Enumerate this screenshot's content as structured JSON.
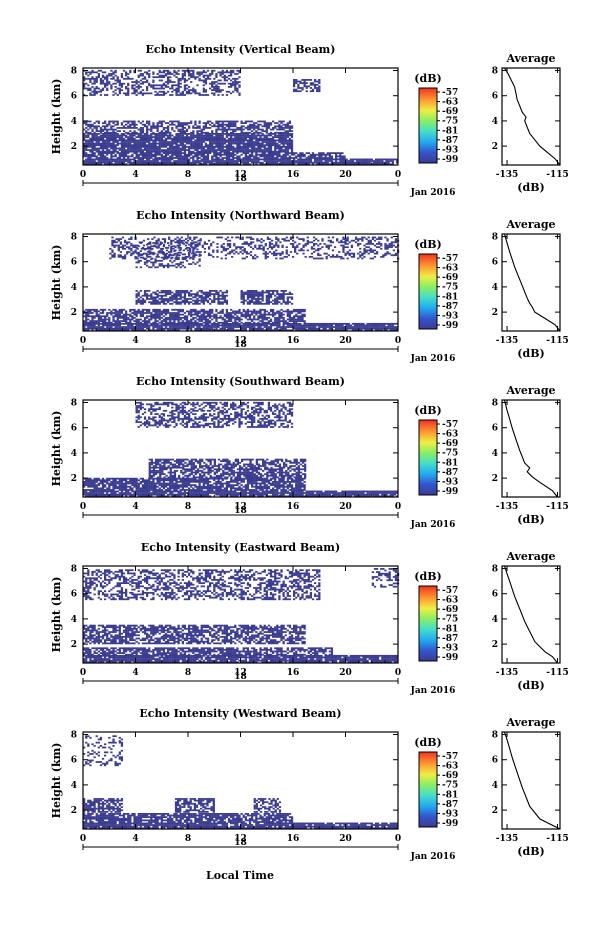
{
  "figure": {
    "xlabel": "Local Time",
    "colorbar_label": "(dB)",
    "avg_title": "Average",
    "avg_xlabel": "(dB)"
  },
  "chart_data": [
    {
      "type": "heatmap",
      "title": "Echo Intensity (Vertical Beam)",
      "ylabel": "Height (km)",
      "xticks": [
        "0",
        "4",
        "8",
        "12",
        "16",
        "20",
        "0"
      ],
      "yticks": [
        "2",
        "4",
        "6",
        "8"
      ],
      "date_label": "Jan 2016",
      "day_label": "18",
      "xlim": [
        0,
        24
      ],
      "ylim": [
        0.5,
        8.2
      ],
      "colorbar": {
        "ticks": [
          "-57",
          "-63",
          "-69",
          "-75",
          "-81",
          "-87",
          "-93",
          "-99"
        ],
        "range": [
          -99,
          -57
        ]
      },
      "layers": [
        {
          "t0": 0,
          "t1": 24,
          "h0": 0.5,
          "h1": 1.0,
          "d": 0.9
        },
        {
          "t0": 0,
          "t1": 20,
          "h0": 1.0,
          "h1": 1.5,
          "d": 0.75
        },
        {
          "t0": 0,
          "t1": 16,
          "h0": 1.5,
          "h1": 3.0,
          "d": 0.88
        },
        {
          "t0": 0,
          "t1": 16,
          "h0": 3.0,
          "h1": 4.0,
          "d": 0.6
        },
        {
          "t0": 0,
          "t1": 12,
          "h0": 6.0,
          "h1": 8.0,
          "d": 0.45
        },
        {
          "t0": 16,
          "t1": 18,
          "h0": 6.3,
          "h1": 7.3,
          "d": 0.5
        }
      ],
      "average": {
        "title": "Average",
        "xlabel": "(dB)",
        "xticks": [
          "-135",
          "-115"
        ],
        "yticks": [
          "2",
          "4",
          "6",
          "8"
        ],
        "xlim": [
          -137,
          -114
        ],
        "ylim": [
          0.5,
          8.2
        ],
        "x": [
          -114,
          -116,
          -119,
          -122,
          -124,
          -126,
          -127,
          -128,
          -127.5,
          -129,
          -130,
          -131,
          -131.5,
          -132,
          -133,
          -134,
          -135,
          -136
        ],
        "y": [
          0.5,
          1.0,
          1.5,
          2.0,
          2.5,
          3.0,
          3.5,
          4.0,
          4.3,
          4.7,
          5.2,
          5.7,
          6.2,
          6.7,
          7.1,
          7.5,
          7.9,
          8.2
        ]
      }
    },
    {
      "type": "heatmap",
      "title": "Echo Intensity (Northward Beam)",
      "ylabel": "Height (km)",
      "xticks": [
        "0",
        "4",
        "8",
        "12",
        "16",
        "20",
        "0"
      ],
      "yticks": [
        "2",
        "4",
        "6",
        "8"
      ],
      "date_label": "Jan 2016",
      "day_label": "18",
      "xlim": [
        0,
        24
      ],
      "ylim": [
        0.5,
        8.2
      ],
      "colorbar": {
        "ticks": [
          "-57",
          "-63",
          "-69",
          "-75",
          "-81",
          "-87",
          "-93",
          "-99"
        ],
        "range": [
          -99,
          -57
        ]
      },
      "layers": [
        {
          "t0": 0,
          "t1": 24,
          "h0": 0.5,
          "h1": 1.1,
          "d": 0.9
        },
        {
          "t0": 0,
          "t1": 17,
          "h0": 1.1,
          "h1": 2.3,
          "d": 0.7
        },
        {
          "t0": 4,
          "t1": 11,
          "h0": 2.6,
          "h1": 3.7,
          "d": 0.7
        },
        {
          "t0": 12,
          "t1": 16,
          "h0": 2.6,
          "h1": 3.7,
          "d": 0.65
        },
        {
          "t0": 2,
          "t1": 24,
          "h0": 6.2,
          "h1": 8.0,
          "d": 0.35
        },
        {
          "t0": 4,
          "t1": 9,
          "h0": 5.5,
          "h1": 7.5,
          "d": 0.35
        }
      ],
      "average": {
        "title": "Average",
        "xlabel": "(dB)",
        "xticks": [
          "-135",
          "-115"
        ],
        "yticks": [
          "2",
          "4",
          "6",
          "8"
        ],
        "xlim": [
          -137,
          -114
        ],
        "ylim": [
          0.5,
          8.2
        ],
        "x": [
          -114,
          -116,
          -120,
          -124,
          -125,
          -126,
          -127,
          -128,
          -129,
          -130,
          -131,
          -132,
          -133,
          -134,
          -135,
          -136
        ],
        "y": [
          0.5,
          1.0,
          1.5,
          2.0,
          2.4,
          2.7,
          3.1,
          3.6,
          4.1,
          4.6,
          5.1,
          5.6,
          6.2,
          6.8,
          7.5,
          8.2
        ]
      }
    },
    {
      "type": "heatmap",
      "title": "Echo Intensity (Southward Beam)",
      "ylabel": "Height (km)",
      "xticks": [
        "0",
        "4",
        "8",
        "12",
        "16",
        "20",
        "0"
      ],
      "yticks": [
        "2",
        "4",
        "6",
        "8"
      ],
      "date_label": "Jan 2016",
      "day_label": "18",
      "xlim": [
        0,
        24
      ],
      "ylim": [
        0.5,
        8.2
      ],
      "colorbar": {
        "ticks": [
          "-57",
          "-63",
          "-69",
          "-75",
          "-81",
          "-87",
          "-93",
          "-99"
        ],
        "range": [
          -99,
          -57
        ]
      },
      "layers": [
        {
          "t0": 0,
          "t1": 24,
          "h0": 0.5,
          "h1": 1.0,
          "d": 0.9
        },
        {
          "t0": 0,
          "t1": 17,
          "h0": 1.0,
          "h1": 2.0,
          "d": 0.8
        },
        {
          "t0": 5,
          "t1": 17,
          "h0": 2.0,
          "h1": 3.5,
          "d": 0.65
        },
        {
          "t0": 4,
          "t1": 16,
          "h0": 6.0,
          "h1": 8.0,
          "d": 0.5
        }
      ],
      "average": {
        "title": "Average",
        "xlabel": "(dB)",
        "xticks": [
          "-135",
          "-115"
        ],
        "yticks": [
          "2",
          "4",
          "6",
          "8"
        ],
        "xlim": [
          -137,
          -114
        ],
        "ylim": [
          0.5,
          8.2
        ],
        "x": [
          -115,
          -117,
          -120,
          -123,
          -125,
          -127,
          -126,
          -128,
          -129,
          -130,
          -131,
          -132,
          -133,
          -134,
          -135,
          -136
        ],
        "y": [
          0.5,
          1.0,
          1.4,
          1.8,
          2.1,
          2.5,
          2.8,
          3.2,
          3.7,
          4.2,
          4.8,
          5.4,
          6.0,
          6.7,
          7.4,
          8.2
        ]
      }
    },
    {
      "type": "heatmap",
      "title": "Echo Intensity (Eastward Beam)",
      "ylabel": "Height (km)",
      "xticks": [
        "0",
        "4",
        "8",
        "12",
        "16",
        "20",
        "0"
      ],
      "yticks": [
        "2",
        "4",
        "6",
        "8"
      ],
      "date_label": "Jan 2016",
      "day_label": "18",
      "xlim": [
        0,
        24
      ],
      "ylim": [
        0.5,
        8.2
      ],
      "colorbar": {
        "ticks": [
          "-57",
          "-63",
          "-69",
          "-75",
          "-81",
          "-87",
          "-93",
          "-99"
        ],
        "range": [
          -99,
          -57
        ]
      },
      "layers": [
        {
          "t0": 0,
          "t1": 24,
          "h0": 0.5,
          "h1": 1.1,
          "d": 0.9
        },
        {
          "t0": 0,
          "t1": 19,
          "h0": 1.1,
          "h1": 1.8,
          "d": 0.75
        },
        {
          "t0": 0,
          "t1": 17,
          "h0": 2.0,
          "h1": 3.5,
          "d": 0.65
        },
        {
          "t0": 0,
          "t1": 18,
          "h0": 5.5,
          "h1": 8.0,
          "d": 0.45
        },
        {
          "t0": 22,
          "t1": 24,
          "h0": 6.5,
          "h1": 8.0,
          "d": 0.4
        }
      ],
      "average": {
        "title": "Average",
        "xlabel": "(dB)",
        "xticks": [
          "-135",
          "-115"
        ],
        "yticks": [
          "2",
          "4",
          "6",
          "8"
        ],
        "xlim": [
          -137,
          -114
        ],
        "ylim": [
          0.5,
          8.2
        ],
        "x": [
          -115,
          -117,
          -120,
          -122,
          -124,
          -125,
          -126,
          -127,
          -128,
          -129,
          -130,
          -131,
          -132,
          -133,
          -134,
          -135,
          -136
        ],
        "y": [
          0.5,
          1.0,
          1.4,
          1.8,
          2.2,
          2.6,
          3.0,
          3.4,
          3.8,
          4.3,
          4.8,
          5.3,
          5.8,
          6.4,
          7.0,
          7.6,
          8.2
        ]
      }
    },
    {
      "type": "heatmap",
      "title": "Echo Intensity (Westward Beam)",
      "ylabel": "Height (km)",
      "xticks": [
        "0",
        "4",
        "8",
        "12",
        "16",
        "20",
        "0"
      ],
      "yticks": [
        "2",
        "4",
        "6",
        "8"
      ],
      "date_label": "Jan 2016",
      "day_label": "18",
      "xlim": [
        0,
        24
      ],
      "ylim": [
        0.5,
        8.2
      ],
      "colorbar": {
        "ticks": [
          "-57",
          "-63",
          "-69",
          "-75",
          "-81",
          "-87",
          "-93",
          "-99"
        ],
        "range": [
          -99,
          -57
        ]
      },
      "layers": [
        {
          "t0": 0,
          "t1": 24,
          "h0": 0.5,
          "h1": 1.0,
          "d": 0.9
        },
        {
          "t0": 0,
          "t1": 16,
          "h0": 1.0,
          "h1": 1.8,
          "d": 0.8
        },
        {
          "t0": 0,
          "t1": 3,
          "h0": 1.8,
          "h1": 3.0,
          "d": 0.7
        },
        {
          "t0": 7,
          "t1": 10,
          "h0": 1.8,
          "h1": 3.0,
          "d": 0.65
        },
        {
          "t0": 13,
          "t1": 15,
          "h0": 1.8,
          "h1": 3.0,
          "d": 0.55
        },
        {
          "t0": 0,
          "t1": 3,
          "h0": 5.5,
          "h1": 8.0,
          "d": 0.25
        }
      ],
      "average": {
        "title": "Average",
        "xlabel": "(dB)",
        "xticks": [
          "-135",
          "-115"
        ],
        "yticks": [
          "2",
          "4",
          "6",
          "8"
        ],
        "xlim": [
          -137,
          -114
        ],
        "ylim": [
          0.5,
          8.2
        ],
        "x": [
          -114,
          -118,
          -122,
          -124,
          -126,
          -127,
          -128,
          -129,
          -130,
          -131,
          -132,
          -133,
          -134,
          -135,
          -136
        ],
        "y": [
          0.5,
          0.9,
          1.3,
          1.8,
          2.3,
          2.8,
          3.3,
          3.8,
          4.4,
          5.0,
          5.6,
          6.2,
          6.9,
          7.6,
          8.2
        ]
      }
    }
  ]
}
